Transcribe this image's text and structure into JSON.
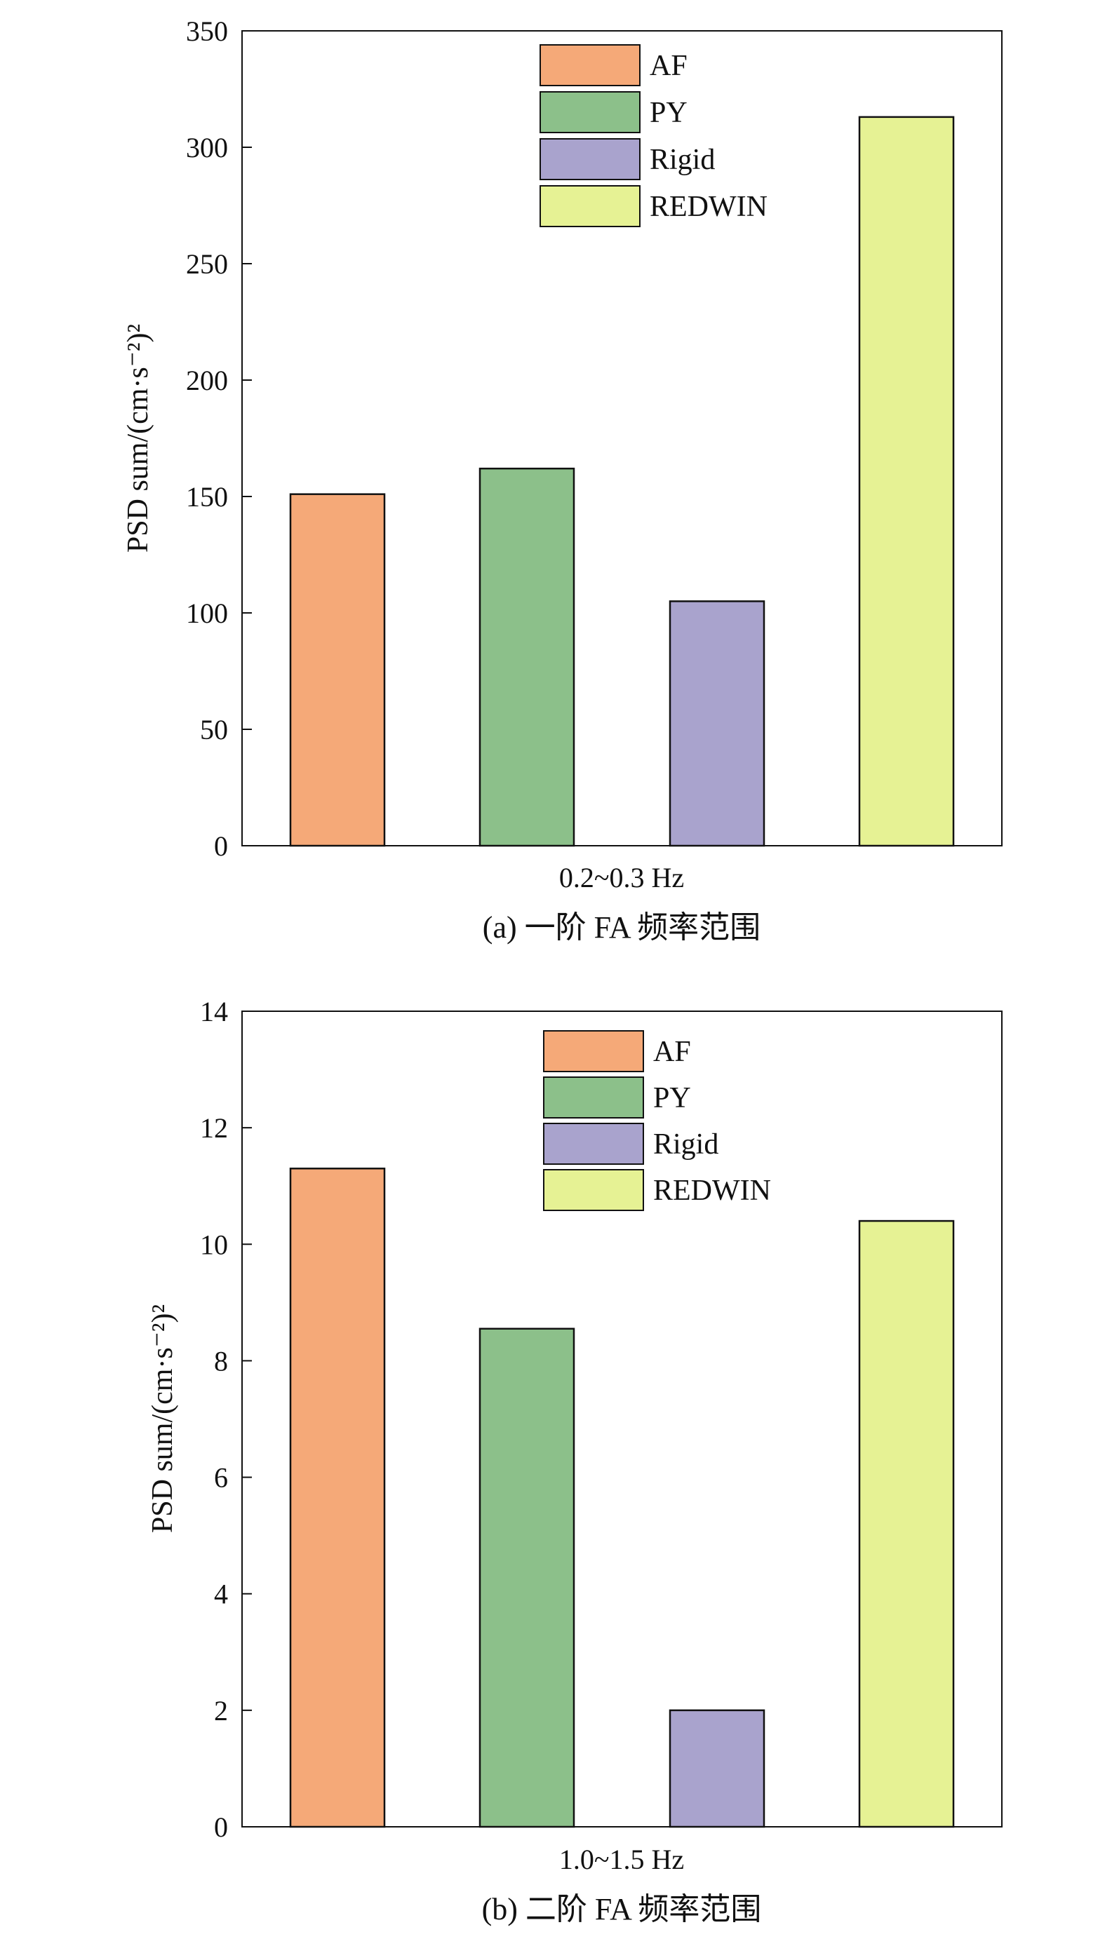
{
  "chart_data": [
    {
      "type": "bar",
      "categories": [
        "AF",
        "PY",
        "Rigid",
        "REDWIN"
      ],
      "values": [
        151,
        162,
        105,
        313
      ],
      "xlabel": "0.2~0.3 Hz",
      "ylabel": "PSD sum/(cm·s⁻²)²",
      "ylim": [
        0,
        350
      ],
      "yticks": [
        "0",
        "50",
        "100",
        "150",
        "200",
        "250",
        "300",
        "350"
      ],
      "caption": "(a) 一阶 FA 频率范围",
      "legend": [
        "AF",
        "PY",
        "Rigid",
        "REDWIN"
      ],
      "legend_position": "top-center",
      "grid": false
    },
    {
      "type": "bar",
      "categories": [
        "AF",
        "PY",
        "Rigid",
        "REDWIN"
      ],
      "values": [
        11.3,
        8.55,
        2.0,
        10.4
      ],
      "xlabel": "1.0~1.5 Hz",
      "ylabel": "PSD sum/(cm·s⁻²)²",
      "ylim": [
        0,
        14
      ],
      "yticks": [
        "0",
        "2",
        "4",
        "6",
        "8",
        "10",
        "12",
        "14"
      ],
      "caption": "(b) 二阶 FA 频率范围",
      "legend": [
        "AF",
        "PY",
        "Rigid",
        "REDWIN"
      ],
      "legend_position": "top-center",
      "grid": false
    }
  ],
  "colors": {
    "AF": "#f5a978",
    "PY": "#8cc08a",
    "Rigid": "#a9a3cd",
    "REDWIN": "#e6f294",
    "edge": "#111111"
  }
}
